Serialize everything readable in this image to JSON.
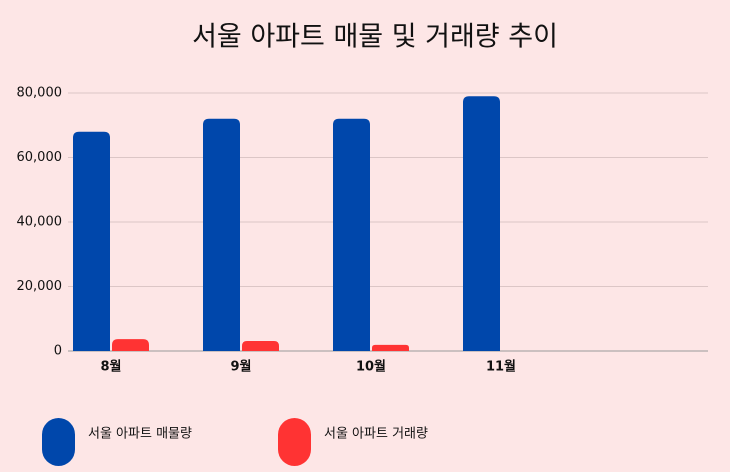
{
  "chart_data": {
    "type": "bar",
    "title": "서울 아파트 매물 및 거래량 추이",
    "categories": [
      "8월",
      "9월",
      "10월",
      "11월"
    ],
    "series": [
      {
        "name": "서울 아파트 매물량",
        "color": "#0047ab",
        "values": [
          68000,
          72000,
          72000,
          79000
        ]
      },
      {
        "name": "서울 아파트 거래량",
        "color": "#ff3333",
        "values": [
          3700,
          3100,
          1900,
          null
        ]
      }
    ],
    "ylim": [
      0,
      80000
    ],
    "yticks": [
      0,
      {
        "value": 20000,
        "label": "20,000"
      },
      {
        "value": 40000,
        "label": "40,000"
      },
      {
        "value": 60000,
        "label": "60,000"
      },
      {
        "value": 80000,
        "label": "80,000"
      }
    ],
    "grid": true
  }
}
